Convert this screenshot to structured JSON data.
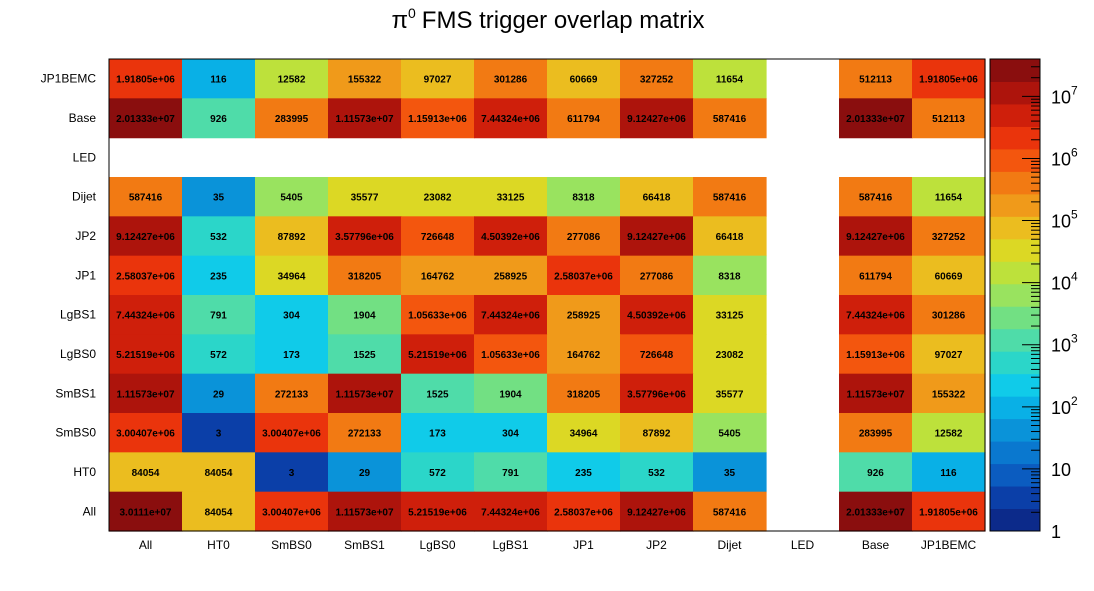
{
  "chart_data": {
    "type": "heatmap",
    "title_main": "FMS trigger overlap matrix",
    "title_symbol": "π",
    "title_sup": "0",
    "x_categories": [
      "All",
      "HT0",
      "SmBS0",
      "SmBS1",
      "LgBS0",
      "LgBS1",
      "JP1",
      "JP2",
      "Dijet",
      "LED",
      "Base",
      "JP1BEMC"
    ],
    "y_categories": [
      "All",
      "HT0",
      "SmBS0",
      "SmBS1",
      "LgBS0",
      "LgBS1",
      "JP1",
      "JP2",
      "Dijet",
      "LED",
      "Base",
      "JP1BEMC"
    ],
    "z_scale": "log",
    "z_range": [
      1,
      40000000
    ],
    "colorbar_ticks": [
      {
        "value": 1,
        "base": "1",
        "exp": ""
      },
      {
        "value": 10,
        "base": "10",
        "exp": ""
      },
      {
        "value": 100,
        "base": "10",
        "exp": "2"
      },
      {
        "value": 1000,
        "base": "10",
        "exp": "3"
      },
      {
        "value": 10000,
        "base": "10",
        "exp": "4"
      },
      {
        "value": 100000,
        "base": "10",
        "exp": "5"
      },
      {
        "value": 1000000,
        "base": "10",
        "exp": "6"
      },
      {
        "value": 10000000,
        "base": "10",
        "exp": "7"
      }
    ],
    "palette": [
      "#0c2a8a",
      "#0b3fa8",
      "#0b5cc0",
      "#0a78cf",
      "#0a93d9",
      "#09b0e6",
      "#10cbe9",
      "#2bd6c9",
      "#4fdca9",
      "#72e083",
      "#99e35f",
      "#bde13b",
      "#dcd824",
      "#ebbd1f",
      "#f09a1a",
      "#f27a13",
      "#f3560e",
      "#ea340c",
      "#cf1f0b",
      "#ad140c",
      "#8a0e0e"
    ],
    "rows": [
      {
        "y": "JP1BEMC",
        "cells": [
          {
            "x": "All",
            "value": 1918050,
            "label": "1.91805e+06"
          },
          {
            "x": "HT0",
            "value": 116,
            "label": "116"
          },
          {
            "x": "SmBS0",
            "value": 12582,
            "label": "12582"
          },
          {
            "x": "SmBS1",
            "value": 155322,
            "label": "155322"
          },
          {
            "x": "LgBS0",
            "value": 97027,
            "label": "97027"
          },
          {
            "x": "LgBS1",
            "value": 301286,
            "label": "301286"
          },
          {
            "x": "JP1",
            "value": 60669,
            "label": "60669"
          },
          {
            "x": "JP2",
            "value": 327252,
            "label": "327252"
          },
          {
            "x": "Dijet",
            "value": 11654,
            "label": "11654"
          },
          {
            "x": "Base",
            "value": 512113,
            "label": "512113"
          },
          {
            "x": "JP1BEMC",
            "value": 1918050,
            "label": "1.91805e+06"
          }
        ]
      },
      {
        "y": "Base",
        "cells": [
          {
            "x": "All",
            "value": 20133300,
            "label": "2.01333e+07"
          },
          {
            "x": "HT0",
            "value": 926,
            "label": "926"
          },
          {
            "x": "SmBS0",
            "value": 283995,
            "label": "283995"
          },
          {
            "x": "SmBS1",
            "value": 11157300,
            "label": "1.11573e+07"
          },
          {
            "x": "LgBS0",
            "value": 1159130,
            "label": "1.15913e+06"
          },
          {
            "x": "LgBS1",
            "value": 7443240,
            "label": "7.44324e+06"
          },
          {
            "x": "JP1",
            "value": 611794,
            "label": "611794"
          },
          {
            "x": "JP2",
            "value": 9124270,
            "label": "9.12427e+06"
          },
          {
            "x": "Dijet",
            "value": 587416,
            "label": "587416"
          },
          {
            "x": "Base",
            "value": 20133300,
            "label": "2.01333e+07"
          },
          {
            "x": "JP1BEMC",
            "value": 512113,
            "label": "512113"
          }
        ]
      },
      {
        "y": "LED",
        "cells": []
      },
      {
        "y": "Dijet",
        "cells": [
          {
            "x": "All",
            "value": 587416,
            "label": "587416"
          },
          {
            "x": "HT0",
            "value": 35,
            "label": "35"
          },
          {
            "x": "SmBS0",
            "value": 5405,
            "label": "5405"
          },
          {
            "x": "SmBS1",
            "value": 35577,
            "label": "35577"
          },
          {
            "x": "LgBS0",
            "value": 23082,
            "label": "23082"
          },
          {
            "x": "LgBS1",
            "value": 33125,
            "label": "33125"
          },
          {
            "x": "JP1",
            "value": 8318,
            "label": "8318"
          },
          {
            "x": "JP2",
            "value": 66418,
            "label": "66418"
          },
          {
            "x": "Dijet",
            "value": 587416,
            "label": "587416"
          },
          {
            "x": "Base",
            "value": 587416,
            "label": "587416"
          },
          {
            "x": "JP1BEMC",
            "value": 11654,
            "label": "11654"
          }
        ]
      },
      {
        "y": "JP2",
        "cells": [
          {
            "x": "All",
            "value": 9124270,
            "label": "9.12427e+06"
          },
          {
            "x": "HT0",
            "value": 532,
            "label": "532"
          },
          {
            "x": "SmBS0",
            "value": 87892,
            "label": "87892"
          },
          {
            "x": "SmBS1",
            "value": 3577960,
            "label": "3.57796e+06"
          },
          {
            "x": "LgBS0",
            "value": 726648,
            "label": "726648"
          },
          {
            "x": "LgBS1",
            "value": 4503920,
            "label": "4.50392e+06"
          },
          {
            "x": "JP1",
            "value": 277086,
            "label": "277086"
          },
          {
            "x": "JP2",
            "value": 9124270,
            "label": "9.12427e+06"
          },
          {
            "x": "Dijet",
            "value": 66418,
            "label": "66418"
          },
          {
            "x": "Base",
            "value": 9124270,
            "label": "9.12427e+06"
          },
          {
            "x": "JP1BEMC",
            "value": 327252,
            "label": "327252"
          }
        ]
      },
      {
        "y": "JP1",
        "cells": [
          {
            "x": "All",
            "value": 2580370,
            "label": "2.58037e+06"
          },
          {
            "x": "HT0",
            "value": 235,
            "label": "235"
          },
          {
            "x": "SmBS0",
            "value": 34964,
            "label": "34964"
          },
          {
            "x": "SmBS1",
            "value": 318205,
            "label": "318205"
          },
          {
            "x": "LgBS0",
            "value": 164762,
            "label": "164762"
          },
          {
            "x": "LgBS1",
            "value": 258925,
            "label": "258925"
          },
          {
            "x": "JP1",
            "value": 2580370,
            "label": "2.58037e+06"
          },
          {
            "x": "JP2",
            "value": 277086,
            "label": "277086"
          },
          {
            "x": "Dijet",
            "value": 8318,
            "label": "8318"
          },
          {
            "x": "Base",
            "value": 611794,
            "label": "611794"
          },
          {
            "x": "JP1BEMC",
            "value": 60669,
            "label": "60669"
          }
        ]
      },
      {
        "y": "LgBS1",
        "cells": [
          {
            "x": "All",
            "value": 7443240,
            "label": "7.44324e+06"
          },
          {
            "x": "HT0",
            "value": 791,
            "label": "791"
          },
          {
            "x": "SmBS0",
            "value": 304,
            "label": "304"
          },
          {
            "x": "SmBS1",
            "value": 1904,
            "label": "1904"
          },
          {
            "x": "LgBS0",
            "value": 1056330,
            "label": "1.05633e+06"
          },
          {
            "x": "LgBS1",
            "value": 7443240,
            "label": "7.44324e+06"
          },
          {
            "x": "JP1",
            "value": 258925,
            "label": "258925"
          },
          {
            "x": "JP2",
            "value": 4503920,
            "label": "4.50392e+06"
          },
          {
            "x": "Dijet",
            "value": 33125,
            "label": "33125"
          },
          {
            "x": "Base",
            "value": 7443240,
            "label": "7.44324e+06"
          },
          {
            "x": "JP1BEMC",
            "value": 301286,
            "label": "301286"
          }
        ]
      },
      {
        "y": "LgBS0",
        "cells": [
          {
            "x": "All",
            "value": 5215190,
            "label": "5.21519e+06"
          },
          {
            "x": "HT0",
            "value": 572,
            "label": "572"
          },
          {
            "x": "SmBS0",
            "value": 173,
            "label": "173"
          },
          {
            "x": "SmBS1",
            "value": 1525,
            "label": "1525"
          },
          {
            "x": "LgBS0",
            "value": 5215190,
            "label": "5.21519e+06"
          },
          {
            "x": "LgBS1",
            "value": 1056330,
            "label": "1.05633e+06"
          },
          {
            "x": "JP1",
            "value": 164762,
            "label": "164762"
          },
          {
            "x": "JP2",
            "value": 726648,
            "label": "726648"
          },
          {
            "x": "Dijet",
            "value": 23082,
            "label": "23082"
          },
          {
            "x": "Base",
            "value": 1159130,
            "label": "1.15913e+06"
          },
          {
            "x": "JP1BEMC",
            "value": 97027,
            "label": "97027"
          }
        ]
      },
      {
        "y": "SmBS1",
        "cells": [
          {
            "x": "All",
            "value": 11157300,
            "label": "1.11573e+07"
          },
          {
            "x": "HT0",
            "value": 29,
            "label": "29"
          },
          {
            "x": "SmBS0",
            "value": 272133,
            "label": "272133"
          },
          {
            "x": "SmBS1",
            "value": 11157300,
            "label": "1.11573e+07"
          },
          {
            "x": "LgBS0",
            "value": 1525,
            "label": "1525"
          },
          {
            "x": "LgBS1",
            "value": 1904,
            "label": "1904"
          },
          {
            "x": "JP1",
            "value": 318205,
            "label": "318205"
          },
          {
            "x": "JP2",
            "value": 3577960,
            "label": "3.57796e+06"
          },
          {
            "x": "Dijet",
            "value": 35577,
            "label": "35577"
          },
          {
            "x": "Base",
            "value": 11157300,
            "label": "1.11573e+07"
          },
          {
            "x": "JP1BEMC",
            "value": 155322,
            "label": "155322"
          }
        ]
      },
      {
        "y": "SmBS0",
        "cells": [
          {
            "x": "All",
            "value": 3004070,
            "label": "3.00407e+06"
          },
          {
            "x": "HT0",
            "value": 3,
            "label": "3"
          },
          {
            "x": "SmBS0",
            "value": 3004070,
            "label": "3.00407e+06"
          },
          {
            "x": "SmBS1",
            "value": 272133,
            "label": "272133"
          },
          {
            "x": "LgBS0",
            "value": 173,
            "label": "173"
          },
          {
            "x": "LgBS1",
            "value": 304,
            "label": "304"
          },
          {
            "x": "JP1",
            "value": 34964,
            "label": "34964"
          },
          {
            "x": "JP2",
            "value": 87892,
            "label": "87892"
          },
          {
            "x": "Dijet",
            "value": 5405,
            "label": "5405"
          },
          {
            "x": "Base",
            "value": 283995,
            "label": "283995"
          },
          {
            "x": "JP1BEMC",
            "value": 12582,
            "label": "12582"
          }
        ]
      },
      {
        "y": "HT0",
        "cells": [
          {
            "x": "All",
            "value": 84054,
            "label": "84054"
          },
          {
            "x": "HT0",
            "value": 84054,
            "label": "84054"
          },
          {
            "x": "SmBS0",
            "value": 3,
            "label": "3"
          },
          {
            "x": "SmBS1",
            "value": 29,
            "label": "29"
          },
          {
            "x": "LgBS0",
            "value": 572,
            "label": "572"
          },
          {
            "x": "LgBS1",
            "value": 791,
            "label": "791"
          },
          {
            "x": "JP1",
            "value": 235,
            "label": "235"
          },
          {
            "x": "JP2",
            "value": 532,
            "label": "532"
          },
          {
            "x": "Dijet",
            "value": 35,
            "label": "35"
          },
          {
            "x": "Base",
            "value": 926,
            "label": "926"
          },
          {
            "x": "JP1BEMC",
            "value": 116,
            "label": "116"
          }
        ]
      },
      {
        "y": "All",
        "cells": [
          {
            "x": "All",
            "value": 30111000,
            "label": "3.0111e+07"
          },
          {
            "x": "HT0",
            "value": 84054,
            "label": "84054"
          },
          {
            "x": "SmBS0",
            "value": 3004070,
            "label": "3.00407e+06"
          },
          {
            "x": "SmBS1",
            "value": 11157300,
            "label": "1.11573e+07"
          },
          {
            "x": "LgBS0",
            "value": 5215190,
            "label": "5.21519e+06"
          },
          {
            "x": "LgBS1",
            "value": 7443240,
            "label": "7.44324e+06"
          },
          {
            "x": "JP1",
            "value": 2580370,
            "label": "2.58037e+06"
          },
          {
            "x": "JP2",
            "value": 9124270,
            "label": "9.12427e+06"
          },
          {
            "x": "Dijet",
            "value": 587416,
            "label": "587416"
          },
          {
            "x": "Base",
            "value": 20133300,
            "label": "2.01333e+07"
          },
          {
            "x": "JP1BEMC",
            "value": 1918050,
            "label": "1.91805e+06"
          }
        ]
      }
    ]
  }
}
